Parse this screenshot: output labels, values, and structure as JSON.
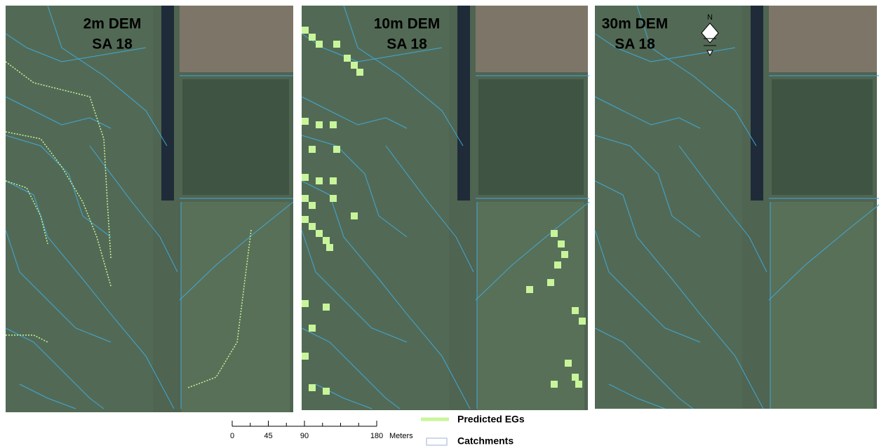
{
  "panels": [
    {
      "title": "2m DEM",
      "subtitle": "SA 18"
    },
    {
      "title": "10m DEM",
      "subtitle": "SA 18"
    },
    {
      "title": "30m DEM",
      "subtitle": "SA 18",
      "north_label": "N"
    }
  ],
  "scale_bar": {
    "ticks": [
      0,
      45,
      90,
      180
    ],
    "unit": "Meters"
  },
  "legend": [
    {
      "label": "Predicted EGs",
      "color": "#c8f59a"
    },
    {
      "label": "Catchments",
      "color": "#aebfdc"
    }
  ]
}
